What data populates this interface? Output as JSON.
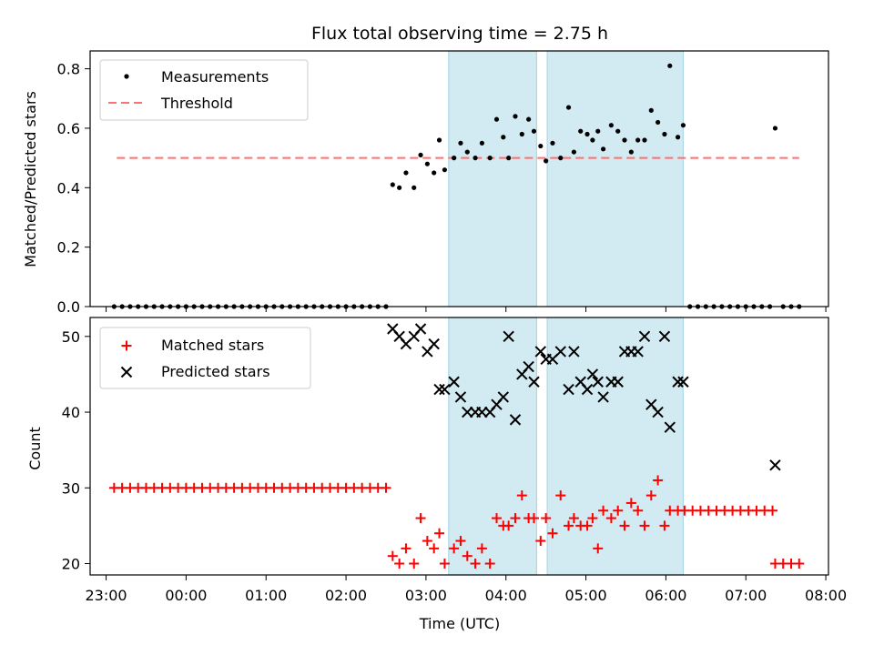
{
  "title": "Flux total observing time = 2.75 h",
  "colors": {
    "measurement": "#000000",
    "threshold": "#ff7070",
    "matched": "#ff0000",
    "predicted": "#000000",
    "shade": "#add8e6"
  },
  "chart_data": [
    {
      "type": "scatter",
      "ylabel": "Matched/Predicted stars",
      "xlim": [
        "22:48",
        "08:02"
      ],
      "ylim": [
        0,
        0.86
      ],
      "yticks": [
        "0.0",
        "0.2",
        "0.4",
        "0.6",
        "0.8"
      ],
      "grid": false,
      "legend_position": "top-left",
      "shaded_intervals": [
        [
          "03:17",
          "04:23"
        ],
        [
          "04:31",
          "06:13"
        ]
      ],
      "threshold": {
        "name": "Threshold",
        "y": 0.5,
        "x_range": [
          "23:08",
          "07:40"
        ],
        "style": "dashed"
      },
      "series": [
        {
          "name": "Measurements",
          "points": [
            [
              "23:06",
              0
            ],
            [
              "23:12",
              0
            ],
            [
              "23:18",
              0
            ],
            [
              "23:24",
              0
            ],
            [
              "23:30",
              0
            ],
            [
              "23:36",
              0
            ],
            [
              "23:42",
              0
            ],
            [
              "23:48",
              0
            ],
            [
              "23:54",
              0
            ],
            [
              "00:00",
              0
            ],
            [
              "00:06",
              0
            ],
            [
              "00:12",
              0
            ],
            [
              "00:18",
              0
            ],
            [
              "00:24",
              0
            ],
            [
              "00:30",
              0
            ],
            [
              "00:36",
              0
            ],
            [
              "00:42",
              0
            ],
            [
              "00:48",
              0
            ],
            [
              "00:54",
              0
            ],
            [
              "01:00",
              0
            ],
            [
              "01:06",
              0
            ],
            [
              "01:12",
              0
            ],
            [
              "01:18",
              0
            ],
            [
              "01:24",
              0
            ],
            [
              "01:30",
              0
            ],
            [
              "01:36",
              0
            ],
            [
              "01:42",
              0
            ],
            [
              "01:48",
              0
            ],
            [
              "01:54",
              0
            ],
            [
              "02:00",
              0
            ],
            [
              "02:06",
              0
            ],
            [
              "02:12",
              0
            ],
            [
              "02:18",
              0
            ],
            [
              "02:24",
              0
            ],
            [
              "02:30",
              0
            ],
            [
              "02:35",
              0.41
            ],
            [
              "02:40",
              0.4
            ],
            [
              "02:45",
              0.45
            ],
            [
              "02:51",
              0.4
            ],
            [
              "02:56",
              0.51
            ],
            [
              "03:01",
              0.48
            ],
            [
              "03:06",
              0.45
            ],
            [
              "03:10",
              0.56
            ],
            [
              "03:14",
              0.46
            ],
            [
              "03:21",
              0.5
            ],
            [
              "03:26",
              0.55
            ],
            [
              "03:31",
              0.52
            ],
            [
              "03:37",
              0.5
            ],
            [
              "03:42",
              0.55
            ],
            [
              "03:48",
              0.5
            ],
            [
              "03:53",
              0.63
            ],
            [
              "03:58",
              0.57
            ],
            [
              "04:02",
              0.5
            ],
            [
              "04:07",
              0.64
            ],
            [
              "04:12",
              0.58
            ],
            [
              "04:17",
              0.63
            ],
            [
              "04:21",
              0.59
            ],
            [
              "04:26",
              0.54
            ],
            [
              "04:30",
              0.49
            ],
            [
              "04:35",
              0.55
            ],
            [
              "04:41",
              0.5
            ],
            [
              "04:47",
              0.67
            ],
            [
              "04:51",
              0.52
            ],
            [
              "04:56",
              0.59
            ],
            [
              "05:01",
              0.58
            ],
            [
              "05:05",
              0.56
            ],
            [
              "05:09",
              0.59
            ],
            [
              "05:13",
              0.53
            ],
            [
              "05:19",
              0.61
            ],
            [
              "05:24",
              0.59
            ],
            [
              "05:29",
              0.56
            ],
            [
              "05:34",
              0.52
            ],
            [
              "05:39",
              0.56
            ],
            [
              "05:44",
              0.56
            ],
            [
              "05:49",
              0.66
            ],
            [
              "05:54",
              0.62
            ],
            [
              "05:59",
              0.58
            ],
            [
              "06:03",
              0.81
            ],
            [
              "06:09",
              0.57
            ],
            [
              "06:13",
              0.61
            ],
            [
              "06:18",
              0
            ],
            [
              "06:24",
              0
            ],
            [
              "06:30",
              0
            ],
            [
              "06:36",
              0
            ],
            [
              "06:42",
              0
            ],
            [
              "06:48",
              0
            ],
            [
              "06:54",
              0
            ],
            [
              "07:00",
              0
            ],
            [
              "07:06",
              0
            ],
            [
              "07:12",
              0
            ],
            [
              "07:18",
              0
            ],
            [
              "07:22",
              0.6
            ],
            [
              "07:28",
              0
            ],
            [
              "07:34",
              0
            ],
            [
              "07:40",
              0
            ]
          ]
        }
      ]
    },
    {
      "type": "scatter",
      "xlabel": "Time (UTC)",
      "ylabel": "Count",
      "xlim": [
        "22:48",
        "08:02"
      ],
      "ylim": [
        18.5,
        52.5
      ],
      "xticks": [
        "23:00",
        "00:00",
        "01:00",
        "02:00",
        "03:00",
        "04:00",
        "05:00",
        "06:00",
        "07:00",
        "08:00"
      ],
      "yticks": [
        "20",
        "30",
        "40",
        "50"
      ],
      "grid": false,
      "legend_position": "top-left",
      "shaded_intervals": [
        [
          "03:17",
          "04:23"
        ],
        [
          "04:31",
          "06:13"
        ]
      ],
      "series": [
        {
          "name": "Matched stars",
          "marker": "plus",
          "points": [
            [
              "23:06",
              30
            ],
            [
              "23:12",
              30
            ],
            [
              "23:18",
              30
            ],
            [
              "23:24",
              30
            ],
            [
              "23:30",
              30
            ],
            [
              "23:36",
              30
            ],
            [
              "23:42",
              30
            ],
            [
              "23:48",
              30
            ],
            [
              "23:54",
              30
            ],
            [
              "00:00",
              30
            ],
            [
              "00:06",
              30
            ],
            [
              "00:12",
              30
            ],
            [
              "00:18",
              30
            ],
            [
              "00:24",
              30
            ],
            [
              "00:30",
              30
            ],
            [
              "00:36",
              30
            ],
            [
              "00:42",
              30
            ],
            [
              "00:48",
              30
            ],
            [
              "00:54",
              30
            ],
            [
              "01:00",
              30
            ],
            [
              "01:06",
              30
            ],
            [
              "01:12",
              30
            ],
            [
              "01:18",
              30
            ],
            [
              "01:24",
              30
            ],
            [
              "01:30",
              30
            ],
            [
              "01:36",
              30
            ],
            [
              "01:42",
              30
            ],
            [
              "01:48",
              30
            ],
            [
              "01:54",
              30
            ],
            [
              "02:00",
              30
            ],
            [
              "02:06",
              30
            ],
            [
              "02:12",
              30
            ],
            [
              "02:18",
              30
            ],
            [
              "02:24",
              30
            ],
            [
              "02:30",
              30
            ],
            [
              "02:35",
              21
            ],
            [
              "02:40",
              20
            ],
            [
              "02:45",
              22
            ],
            [
              "02:51",
              20
            ],
            [
              "02:56",
              26
            ],
            [
              "03:01",
              23
            ],
            [
              "03:06",
              22
            ],
            [
              "03:10",
              24
            ],
            [
              "03:14",
              20
            ],
            [
              "03:21",
              22
            ],
            [
              "03:26",
              23
            ],
            [
              "03:31",
              21
            ],
            [
              "03:37",
              20
            ],
            [
              "03:42",
              22
            ],
            [
              "03:48",
              20
            ],
            [
              "03:53",
              26
            ],
            [
              "03:58",
              25
            ],
            [
              "04:02",
              25
            ],
            [
              "04:07",
              26
            ],
            [
              "04:12",
              29
            ],
            [
              "04:17",
              26
            ],
            [
              "04:21",
              26
            ],
            [
              "04:26",
              23
            ],
            [
              "04:30",
              26
            ],
            [
              "04:35",
              24
            ],
            [
              "04:41",
              29
            ],
            [
              "04:47",
              25
            ],
            [
              "04:51",
              26
            ],
            [
              "04:56",
              25
            ],
            [
              "05:01",
              25
            ],
            [
              "05:05",
              26
            ],
            [
              "05:09",
              22
            ],
            [
              "05:13",
              27
            ],
            [
              "05:19",
              26
            ],
            [
              "05:24",
              27
            ],
            [
              "05:29",
              25
            ],
            [
              "05:34",
              28
            ],
            [
              "05:39",
              27
            ],
            [
              "05:44",
              25
            ],
            [
              "05:49",
              29
            ],
            [
              "05:54",
              31
            ],
            [
              "05:59",
              25
            ],
            [
              "06:03",
              27
            ],
            [
              "06:09",
              27
            ],
            [
              "06:14",
              27
            ],
            [
              "06:20",
              27
            ],
            [
              "06:26",
              27
            ],
            [
              "06:32",
              27
            ],
            [
              "06:38",
              27
            ],
            [
              "06:44",
              27
            ],
            [
              "06:50",
              27
            ],
            [
              "06:56",
              27
            ],
            [
              "07:02",
              27
            ],
            [
              "07:08",
              27
            ],
            [
              "07:14",
              27
            ],
            [
              "07:20",
              27
            ],
            [
              "07:22",
              20
            ],
            [
              "07:28",
              20
            ],
            [
              "07:34",
              20
            ],
            [
              "07:40",
              20
            ]
          ]
        },
        {
          "name": "Predicted stars",
          "marker": "x",
          "points": [
            [
              "02:35",
              51
            ],
            [
              "02:40",
              50
            ],
            [
              "02:45",
              49
            ],
            [
              "02:51",
              50
            ],
            [
              "02:56",
              51
            ],
            [
              "03:01",
              48
            ],
            [
              "03:06",
              49
            ],
            [
              "03:10",
              43
            ],
            [
              "03:14",
              43
            ],
            [
              "03:21",
              44
            ],
            [
              "03:26",
              42
            ],
            [
              "03:31",
              40
            ],
            [
              "03:37",
              40
            ],
            [
              "03:42",
              40
            ],
            [
              "03:48",
              40
            ],
            [
              "03:53",
              41
            ],
            [
              "03:58",
              42
            ],
            [
              "04:02",
              50
            ],
            [
              "04:07",
              39
            ],
            [
              "04:12",
              45
            ],
            [
              "04:17",
              46
            ],
            [
              "04:21",
              44
            ],
            [
              "04:26",
              48
            ],
            [
              "04:30",
              47
            ],
            [
              "04:35",
              47
            ],
            [
              "04:41",
              48
            ],
            [
              "04:47",
              43
            ],
            [
              "04:51",
              48
            ],
            [
              "04:56",
              44
            ],
            [
              "05:01",
              43
            ],
            [
              "05:05",
              45
            ],
            [
              "05:09",
              44
            ],
            [
              "05:13",
              42
            ],
            [
              "05:19",
              44
            ],
            [
              "05:24",
              44
            ],
            [
              "05:29",
              48
            ],
            [
              "05:34",
              48
            ],
            [
              "05:39",
              48
            ],
            [
              "05:44",
              50
            ],
            [
              "05:49",
              41
            ],
            [
              "05:54",
              40
            ],
            [
              "05:59",
              50
            ],
            [
              "06:03",
              38
            ],
            [
              "06:09",
              44
            ],
            [
              "06:13",
              44
            ],
            [
              "07:22",
              33
            ]
          ]
        }
      ]
    }
  ]
}
